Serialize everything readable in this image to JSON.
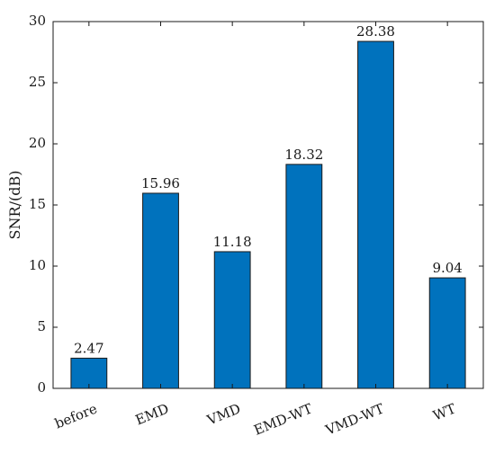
{
  "chart_data": {
    "type": "bar",
    "title": "",
    "xlabel": "",
    "ylabel": "SNR/(dB)",
    "categories": [
      "before",
      "EMD",
      "VMD",
      "EMD-WT",
      "VMD-WT",
      "WT"
    ],
    "values": [
      2.47,
      15.96,
      11.18,
      18.32,
      28.38,
      9.04
    ],
    "data_labels": [
      "2.47",
      "15.96",
      "11.18",
      "18.32",
      "28.38",
      "9.04"
    ],
    "ylim": [
      0,
      30
    ],
    "yticks": [
      0,
      5,
      10,
      15,
      20,
      25,
      30
    ],
    "grid": false,
    "legend": "none",
    "bar_color": "#0072BD",
    "bar_edge_color": "#1a1a1a",
    "x_tick_rotation": "slanted"
  }
}
